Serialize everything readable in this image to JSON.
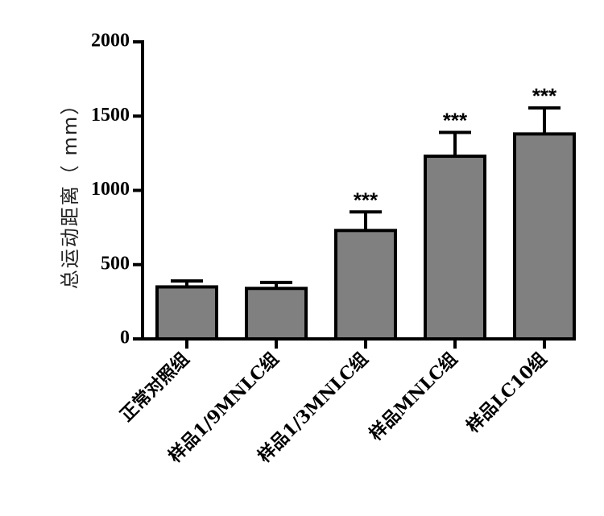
{
  "chart_data": {
    "type": "bar",
    "title": "",
    "xlabel": "",
    "ylabel": "总运动距离（ mm）",
    "ylim": [
      0,
      2000
    ],
    "yticks": [
      "0",
      "500",
      "1000",
      "1500",
      "2000"
    ],
    "categories": [
      "正常对照组",
      "样品1/9MNLC组",
      "样品1/3MNLC组",
      "样品MNLC组",
      "样品LC10组"
    ],
    "values": [
      350,
      340,
      730,
      1230,
      1380
    ],
    "errors": [
      40,
      40,
      125,
      160,
      175
    ],
    "annotations": [
      "",
      "",
      "***",
      "***",
      "***"
    ],
    "bar_color": "#808080",
    "grid": false,
    "legend": "none"
  }
}
